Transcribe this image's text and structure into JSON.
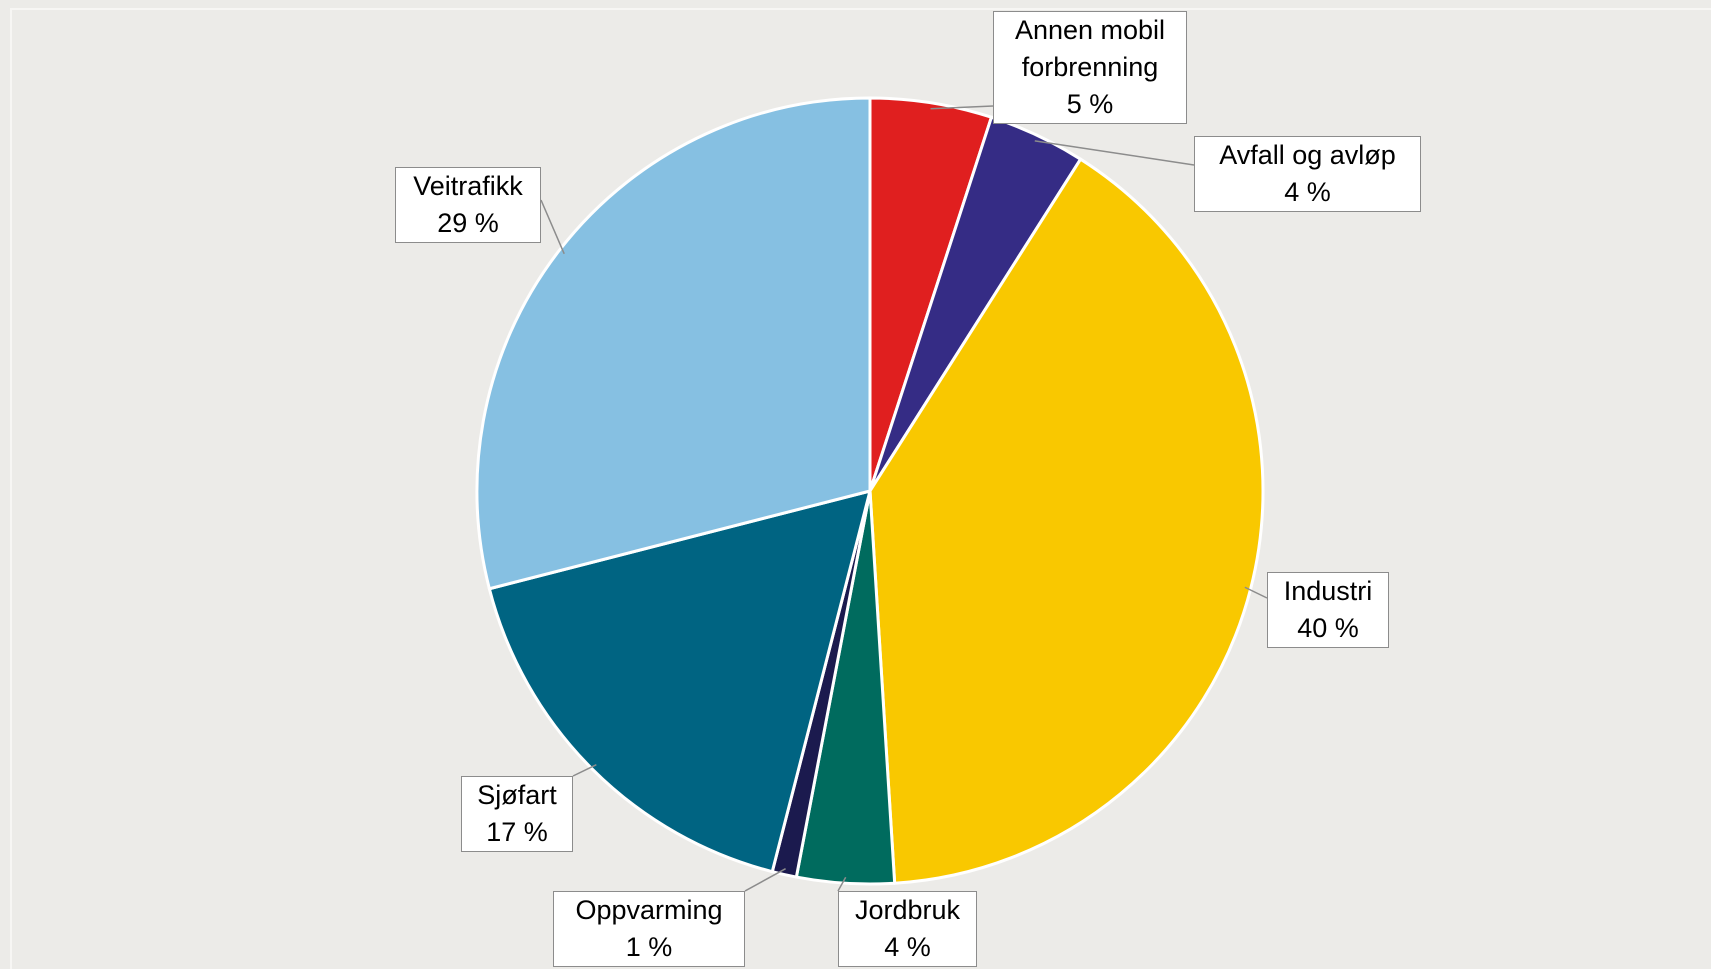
{
  "chart_data": {
    "type": "pie",
    "categories": [
      "Annen mobil forbrenning",
      "Avfall og avløp",
      "Industri",
      "Jordbruk",
      "Oppvarming",
      "Sjøfart",
      "Veitrafikk"
    ],
    "values": [
      5,
      4,
      40,
      4,
      1,
      17,
      29
    ],
    "value_labels": [
      "5 %",
      "4 %",
      "40 %",
      "4 %",
      "1 %",
      "17 %",
      "29 %"
    ],
    "colors": [
      "#e01f1f",
      "#352c85",
      "#f9c800",
      "#006b5e",
      "#1b1a4e",
      "#006482",
      "#86c0e2"
    ]
  }
}
